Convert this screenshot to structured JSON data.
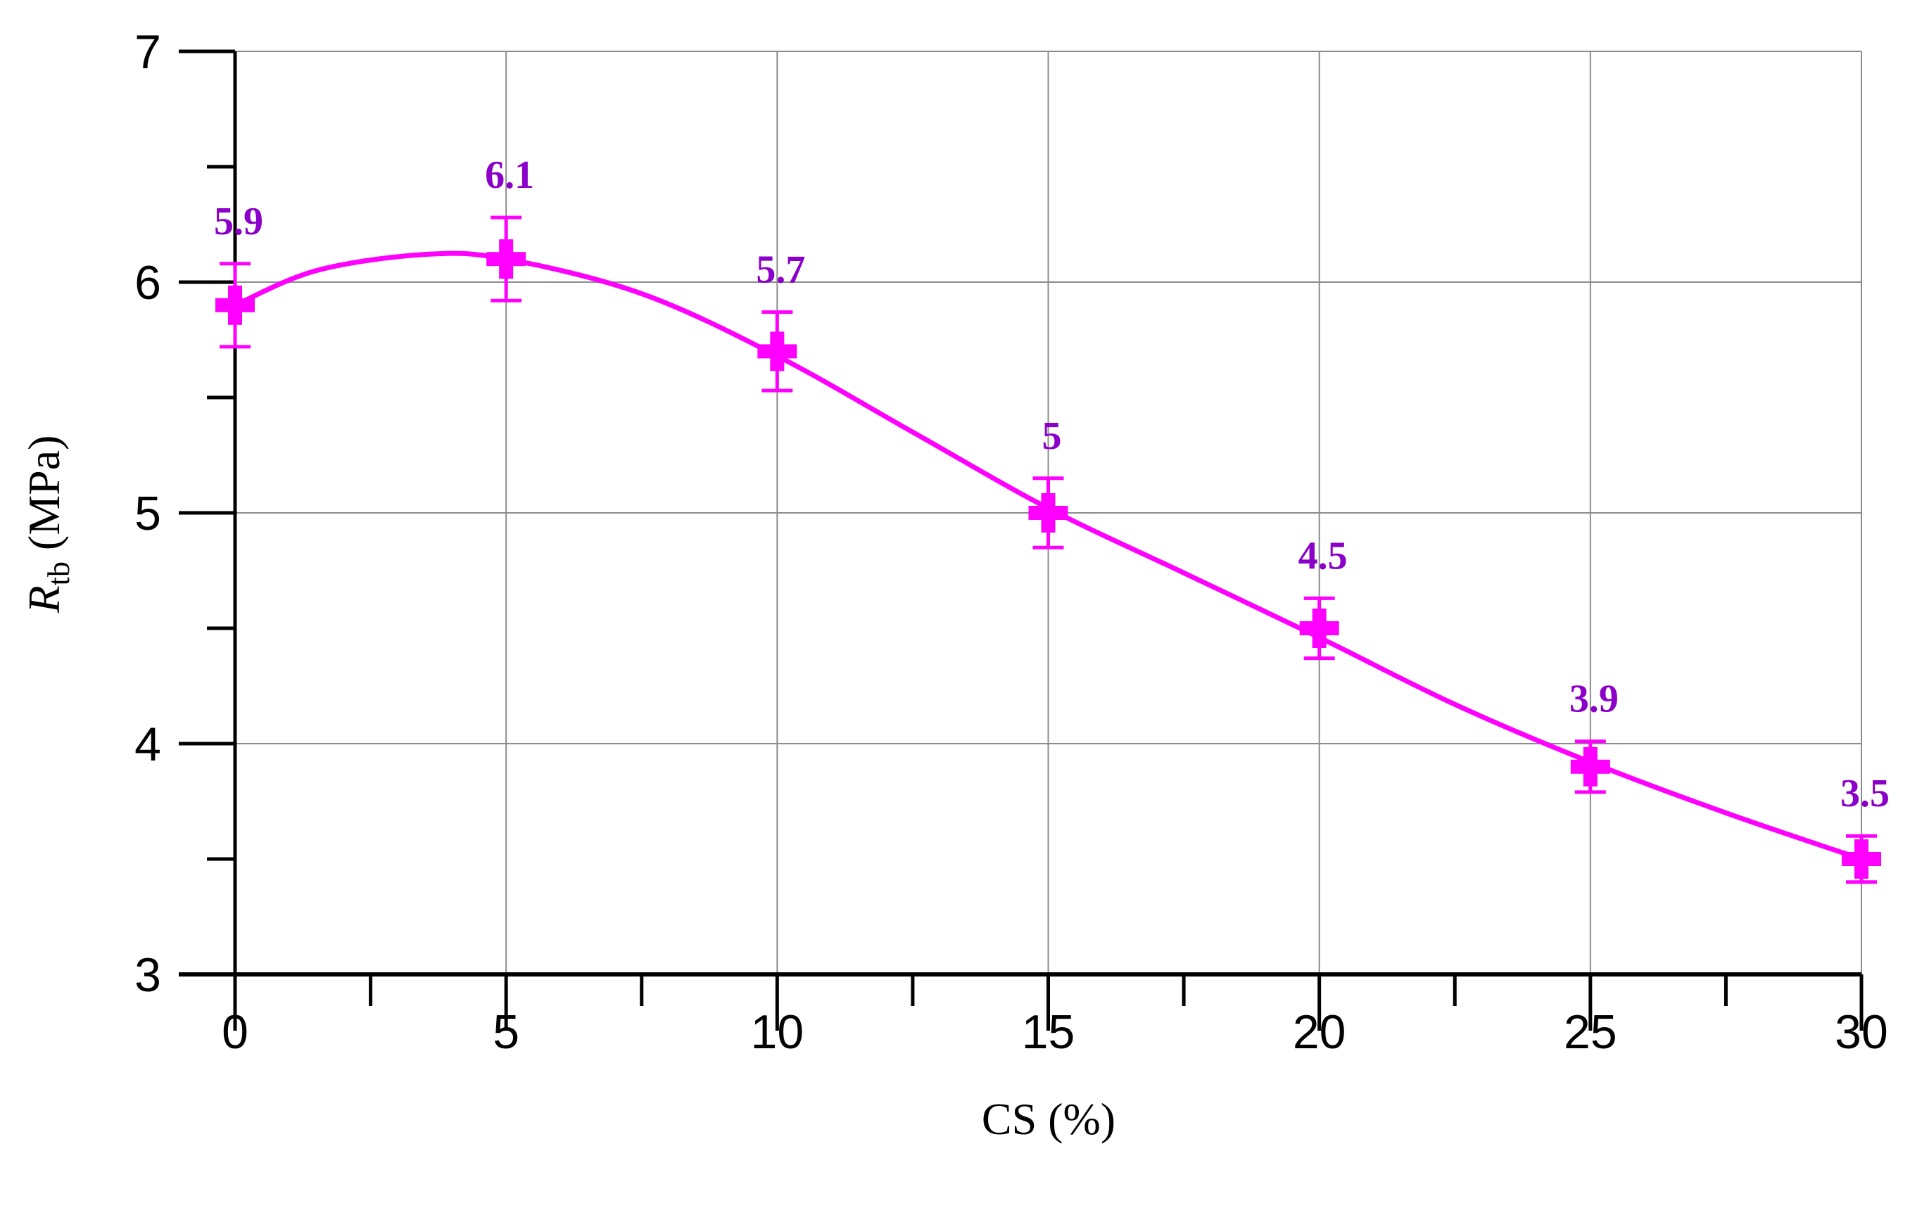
{
  "chart_data": {
    "type": "line",
    "title": "",
    "xlabel": "CS (%)",
    "ylabel": "R_tb (MPa)",
    "ylabel_parts": {
      "main": "R",
      "sub": "tb",
      "unit": " (MPa)"
    },
    "xlim": [
      0,
      30
    ],
    "ylim": [
      3,
      7
    ],
    "x_ticks": [
      "0",
      "5",
      "10",
      "15",
      "20",
      "25",
      "30"
    ],
    "y_ticks": [
      "3",
      "4",
      "5",
      "6",
      "7"
    ],
    "grid": true,
    "legend": null,
    "series": [
      {
        "name": "R_tb",
        "color": "#ff00ff",
        "marker": "plus-square",
        "x": [
          0,
          5,
          10,
          15,
          20,
          25,
          30
        ],
        "values": [
          5.9,
          6.1,
          5.7,
          5.0,
          4.5,
          3.9,
          3.5
        ],
        "error_low": [
          5.72,
          5.92,
          5.53,
          4.85,
          4.37,
          3.79,
          3.4
        ],
        "error_high": [
          6.08,
          6.28,
          5.87,
          5.15,
          4.63,
          4.01,
          3.6
        ],
        "data_labels": [
          "5.9",
          "6.1",
          "5.7",
          "5",
          "4.5",
          "3.9",
          "3.5"
        ],
        "fit": "smooth curve"
      }
    ],
    "colors": {
      "series": "#ff00ff",
      "data_label": "#8b00c8",
      "grid": "#8c8c8c",
      "axis": "#000000"
    }
  }
}
